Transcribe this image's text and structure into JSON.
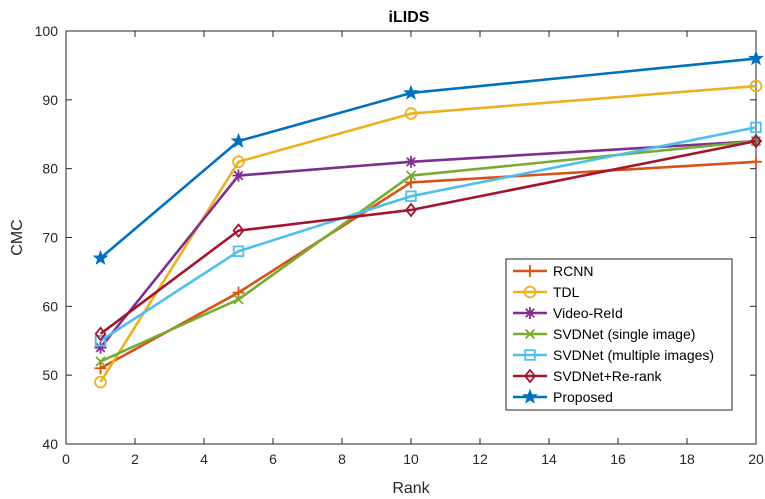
{
  "chart_data": {
    "type": "line",
    "title": "iLIDS",
    "xlabel": "Rank",
    "ylabel": "CMC",
    "xlim": [
      0,
      20
    ],
    "ylim": [
      40,
      100
    ],
    "xticks": [
      0,
      2,
      4,
      6,
      8,
      10,
      12,
      14,
      16,
      18,
      20
    ],
    "yticks": [
      40,
      50,
      60,
      70,
      80,
      90,
      100
    ],
    "grid": false,
    "legend_position": "bottom-right",
    "x": [
      1,
      5,
      10,
      20
    ],
    "series": [
      {
        "name": "RCNN",
        "values": [
          51,
          62,
          78,
          81
        ],
        "color": "#D95319",
        "marker": "plus"
      },
      {
        "name": "TDL",
        "values": [
          49,
          81,
          88,
          92
        ],
        "color": "#EDB120",
        "marker": "circle"
      },
      {
        "name": "Video-ReId",
        "values": [
          54,
          79,
          81,
          84
        ],
        "color": "#7E2F8E",
        "marker": "asterisk"
      },
      {
        "name": "SVDNet (single image)",
        "values": [
          52,
          61,
          79,
          84
        ],
        "color": "#77AC30",
        "marker": "cross"
      },
      {
        "name": "SVDNet (multiple images)",
        "values": [
          55,
          68,
          76,
          86
        ],
        "color": "#4DBEEE",
        "marker": "square"
      },
      {
        "name": "SVDNet+Re-rank",
        "values": [
          56,
          71,
          74,
          84
        ],
        "color": "#A2142F",
        "marker": "diamond"
      },
      {
        "name": "Proposed",
        "values": [
          67,
          84,
          91,
          96
        ],
        "color": "#0072BD",
        "marker": "star"
      }
    ]
  }
}
